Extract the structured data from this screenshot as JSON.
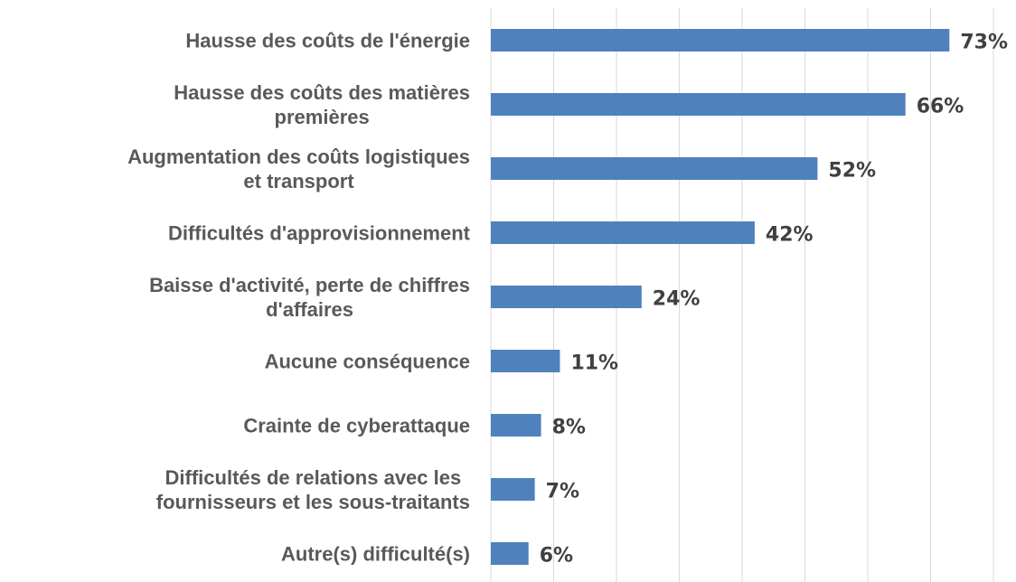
{
  "chart_data": {
    "type": "barh",
    "categories": [
      "Hausse des coûts de l'énergie",
      "Hausse des coûts des matières\npremières",
      "Augmentation des coûts logistiques\net transport",
      "Difficultés d'approvisionnement",
      "Baisse d'activité, perte de chiffres\nd'affaires",
      "Aucune conséquence",
      "Crainte de cyberattaque",
      "Difficultés de relations avec les\nfournisseurs et les sous-traitants",
      "Autre(s) difficulté(s)"
    ],
    "values": [
      73,
      66,
      52,
      42,
      24,
      11,
      8,
      7,
      6
    ],
    "value_labels": [
      "73%",
      "66%",
      "52%",
      "42%",
      "24%",
      "11%",
      "8%",
      "7%",
      "6%"
    ],
    "color": "#4f81bd",
    "xlim": [
      0,
      80
    ],
    "xticks": [
      0,
      10,
      20,
      30,
      40,
      50,
      60,
      70,
      80
    ],
    "grid": true
  }
}
